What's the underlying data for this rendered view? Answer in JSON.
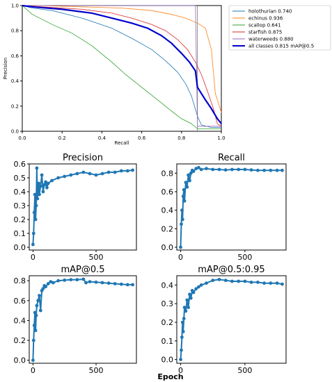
{
  "chart_data": [
    {
      "type": "line",
      "xlabel": "Recall",
      "ylabel": "Precision",
      "xlim": [
        0,
        1
      ],
      "ylim": [
        0,
        1
      ],
      "xticks": [
        "0.0",
        "0.2",
        "0.4",
        "0.6",
        "0.8",
        "1.0"
      ],
      "yticks": [
        "0.0",
        "0.2",
        "0.4",
        "0.6",
        "0.8",
        "1.0"
      ],
      "legend_position": "right outside",
      "vline_x": 0.88,
      "series": [
        {
          "name": "holothurian 0.740",
          "color": "#1f77b4",
          "width": 0.8,
          "x": [
            0,
            0.05,
            0.15,
            0.3,
            0.45,
            0.55,
            0.65,
            0.72,
            0.78,
            0.82,
            0.85,
            0.88,
            0.9,
            0.95,
            1.0
          ],
          "y": [
            1.0,
            0.98,
            0.96,
            0.9,
            0.82,
            0.74,
            0.65,
            0.56,
            0.47,
            0.38,
            0.28,
            0.12,
            0.05,
            0.03,
            0.03
          ]
        },
        {
          "name": "echinus 0.936",
          "color": "#ff7f0e",
          "width": 0.8,
          "x": [
            0,
            0.1,
            0.3,
            0.5,
            0.65,
            0.75,
            0.82,
            0.88,
            0.92,
            0.95,
            0.97,
            1.0
          ],
          "y": [
            1.0,
            1.0,
            0.99,
            0.98,
            0.96,
            0.93,
            0.9,
            0.86,
            0.82,
            0.65,
            0.3,
            0.15
          ]
        },
        {
          "name": "scallop 0.641",
          "color": "#2ca02c",
          "width": 0.8,
          "x": [
            0,
            0.05,
            0.15,
            0.25,
            0.35,
            0.45,
            0.52,
            0.6,
            0.68,
            0.75,
            0.8,
            0.85,
            0.88,
            1.0
          ],
          "y": [
            1.0,
            0.93,
            0.85,
            0.78,
            0.68,
            0.55,
            0.45,
            0.35,
            0.25,
            0.16,
            0.1,
            0.06,
            0.02,
            0.02
          ]
        },
        {
          "name": "starfish 0.875",
          "color": "#d62728",
          "width": 0.8,
          "x": [
            0,
            0.1,
            0.3,
            0.45,
            0.55,
            0.65,
            0.72,
            0.78,
            0.83,
            0.87,
            0.9,
            0.93,
            0.96,
            0.98,
            1.0
          ],
          "y": [
            1.0,
            0.99,
            0.97,
            0.94,
            0.9,
            0.85,
            0.8,
            0.73,
            0.65,
            0.55,
            0.45,
            0.32,
            0.18,
            0.06,
            0.04
          ]
        },
        {
          "name": "waterweeds 0.880",
          "color": "#9467bd",
          "width": 0.8,
          "x": [
            0,
            0.8,
            0.87,
            0.88,
            0.9,
            1.0
          ],
          "y": [
            1.0,
            1.0,
            1.0,
            0.04,
            0.04,
            0.04
          ]
        },
        {
          "name": "all classes 0.815 mAP@0.5",
          "color": "#0000cc",
          "width": 2.2,
          "x": [
            0,
            0.05,
            0.2,
            0.35,
            0.45,
            0.55,
            0.63,
            0.7,
            0.75,
            0.8,
            0.84,
            0.87,
            0.88,
            0.92,
            0.95,
            0.98,
            1.0
          ],
          "y": [
            1.0,
            0.99,
            0.97,
            0.94,
            0.9,
            0.86,
            0.82,
            0.76,
            0.7,
            0.62,
            0.55,
            0.48,
            0.35,
            0.25,
            0.18,
            0.1,
            0.06
          ]
        }
      ]
    },
    {
      "type": "line",
      "title": "Precision",
      "xticks": [
        "0",
        "500"
      ],
      "yticks": [
        "0.0",
        "0.1",
        "0.2",
        "0.3",
        "0.4",
        "0.5",
        "0.6"
      ],
      "xlim": [
        -30,
        820
      ],
      "ylim": [
        -0.02,
        0.6
      ],
      "tick_step": 0.1,
      "series": [
        {
          "color": "#1f77b4",
          "x": [
            0,
            5,
            10,
            15,
            20,
            25,
            30,
            35,
            40,
            45,
            50,
            60,
            70,
            80,
            90,
            100,
            110,
            120,
            150,
            200,
            250,
            300,
            350,
            400,
            450,
            500,
            550,
            600,
            650,
            700,
            750,
            790
          ],
          "y": [
            0.02,
            0.1,
            0.25,
            0.38,
            0.2,
            0.3,
            0.57,
            0.35,
            0.42,
            0.46,
            0.38,
            0.44,
            0.52,
            0.4,
            0.45,
            0.47,
            0.43,
            0.46,
            0.48,
            0.5,
            0.51,
            0.52,
            0.53,
            0.54,
            0.53,
            0.52,
            0.53,
            0.54,
            0.54,
            0.55,
            0.55,
            0.555
          ]
        }
      ]
    },
    {
      "type": "line",
      "title": "Recall",
      "xticks": [
        "0",
        "500"
      ],
      "yticks": [
        "0.0",
        "0.2",
        "0.4",
        "0.6",
        "0.8"
      ],
      "xlim": [
        -30,
        820
      ],
      "ylim": [
        -0.03,
        0.9
      ],
      "tick_step": 0.2,
      "series": [
        {
          "color": "#1f77b4",
          "x": [
            0,
            5,
            10,
            15,
            20,
            25,
            30,
            40,
            50,
            60,
            70,
            80,
            90,
            100,
            120,
            140,
            160,
            200,
            250,
            300,
            350,
            400,
            450,
            500,
            550,
            600,
            650,
            700,
            750,
            790
          ],
          "y": [
            0.0,
            0.25,
            0.4,
            0.3,
            0.55,
            0.62,
            0.5,
            0.7,
            0.65,
            0.78,
            0.72,
            0.8,
            0.83,
            0.82,
            0.85,
            0.86,
            0.84,
            0.85,
            0.84,
            0.84,
            0.835,
            0.84,
            0.84,
            0.84,
            0.835,
            0.83,
            0.83,
            0.83,
            0.83,
            0.83
          ]
        }
      ]
    },
    {
      "type": "line",
      "title": "mAP@0.5",
      "xticks": [
        "0",
        "500"
      ],
      "yticks": [
        "0.0",
        "0.2",
        "0.4",
        "0.6",
        "0.8"
      ],
      "xlim": [
        -30,
        820
      ],
      "ylim": [
        -0.03,
        0.85
      ],
      "tick_step": 0.2,
      "series": [
        {
          "color": "#1f77b4",
          "x": [
            0,
            5,
            10,
            15,
            20,
            25,
            30,
            40,
            50,
            60,
            70,
            80,
            90,
            100,
            120,
            140,
            160,
            200,
            250,
            300,
            350,
            400,
            420,
            450,
            500,
            550,
            600,
            650,
            700,
            750,
            790
          ],
          "y": [
            0.0,
            0.2,
            0.35,
            0.48,
            0.3,
            0.45,
            0.55,
            0.6,
            0.65,
            0.5,
            0.7,
            0.72,
            0.75,
            0.74,
            0.77,
            0.79,
            0.78,
            0.8,
            0.805,
            0.81,
            0.81,
            0.815,
            0.78,
            0.79,
            0.785,
            0.78,
            0.775,
            0.77,
            0.765,
            0.76,
            0.76
          ]
        }
      ]
    },
    {
      "type": "line",
      "title": "mAP@0.5:0.95",
      "xticks": [
        "0",
        "500"
      ],
      "yticks": [
        "0.0",
        "0.1",
        "0.2",
        "0.3",
        "0.4"
      ],
      "xlim": [
        -30,
        820
      ],
      "ylim": [
        -0.02,
        0.45
      ],
      "tick_step": 0.1,
      "series": [
        {
          "color": "#1f77b4",
          "x": [
            0,
            5,
            10,
            15,
            20,
            25,
            30,
            40,
            50,
            60,
            70,
            80,
            90,
            100,
            120,
            140,
            160,
            200,
            250,
            300,
            350,
            400,
            450,
            500,
            550,
            600,
            650,
            700,
            750,
            790
          ],
          "y": [
            0.0,
            0.05,
            0.12,
            0.2,
            0.15,
            0.22,
            0.28,
            0.26,
            0.32,
            0.28,
            0.35,
            0.33,
            0.37,
            0.36,
            0.38,
            0.39,
            0.4,
            0.41,
            0.425,
            0.43,
            0.425,
            0.42,
            0.42,
            0.42,
            0.415,
            0.415,
            0.41,
            0.41,
            0.41,
            0.405
          ]
        }
      ]
    }
  ],
  "shared_xlabel": "Epoch"
}
